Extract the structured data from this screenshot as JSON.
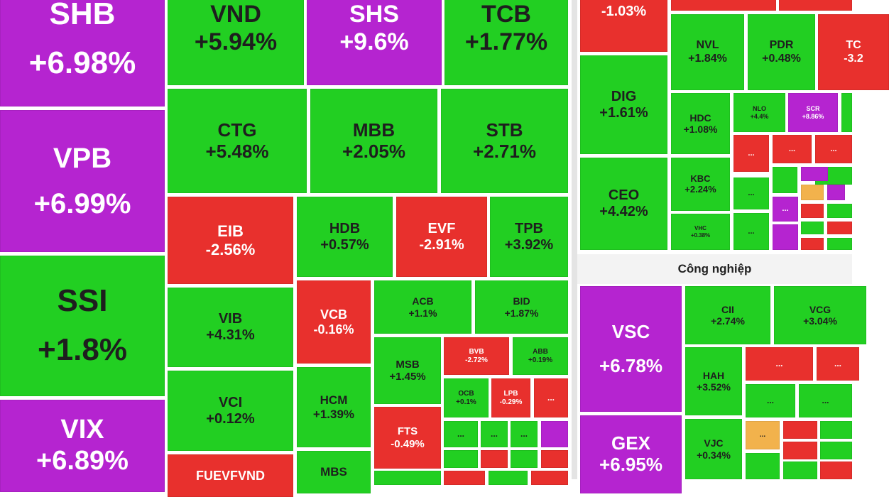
{
  "sections": {
    "industry_title": "Công nghiệp"
  },
  "tiles": [
    {
      "ticker": "SHB",
      "change": "+6.98%",
      "color": "#b524d0"
    },
    {
      "ticker": "VPB",
      "change": "+6.99%",
      "color": "#b524d0"
    },
    {
      "ticker": "SSI",
      "change": "+1.8%",
      "color": "#22cf22"
    },
    {
      "ticker": "VIX",
      "change": "+6.89%",
      "color": "#b524d0"
    },
    {
      "ticker": "VND",
      "change": "+5.94%",
      "color": "#22cf22"
    },
    {
      "ticker": "SHS",
      "change": "+9.6%",
      "color": "#b524d0"
    },
    {
      "ticker": "TCB",
      "change": "+1.77%",
      "color": "#22cf22"
    },
    {
      "ticker": "CTG",
      "change": "+5.48%",
      "color": "#22cf22"
    },
    {
      "ticker": "MBB",
      "change": "+2.05%",
      "color": "#22cf22"
    },
    {
      "ticker": "STB",
      "change": "+2.71%",
      "color": "#22cf22"
    },
    {
      "ticker": "EIB",
      "change": "-2.56%",
      "color": "#e8302d"
    },
    {
      "ticker": "HDB",
      "change": "+0.57%",
      "color": "#22cf22"
    },
    {
      "ticker": "EVF",
      "change": "-2.91%",
      "color": "#e8302d"
    },
    {
      "ticker": "TPB",
      "change": "+3.92%",
      "color": "#22cf22"
    },
    {
      "ticker": "VIB",
      "change": "+4.31%",
      "color": "#22cf22"
    },
    {
      "ticker": "VCI",
      "change": "+0.12%",
      "color": "#22cf22"
    },
    {
      "ticker": "FUEVFVND",
      "color": "#e8302d"
    },
    {
      "ticker": "VCB",
      "change": "-0.16%",
      "color": "#e8302d"
    },
    {
      "ticker": "HCM",
      "change": "+1.39%",
      "color": "#22cf22"
    },
    {
      "ticker": "MBS",
      "color": "#22cf22"
    },
    {
      "ticker": "ACB",
      "change": "+1.1%",
      "color": "#22cf22"
    },
    {
      "ticker": "BID",
      "change": "+1.87%",
      "color": "#22cf22"
    },
    {
      "ticker": "MSB",
      "change": "+1.45%",
      "color": "#22cf22"
    },
    {
      "ticker": "BVB",
      "change": "-2.72%",
      "color": "#e8302d"
    },
    {
      "ticker": "ABB",
      "change": "+0.19%",
      "color": "#22cf22"
    },
    {
      "ticker": "OCB",
      "change": "+0.1%",
      "color": "#22cf22"
    },
    {
      "ticker": "LPB",
      "change": "-0.29%",
      "color": "#e8302d"
    },
    {
      "ticker": "...",
      "color": "#e8302d"
    },
    {
      "ticker": "FTS",
      "change": "-0.49%",
      "color": "#e8302d"
    },
    {
      "ticker": "...",
      "color": "#22cf22"
    },
    {
      "ticker": "...",
      "color": "#22cf22"
    },
    {
      "ticker": "...",
      "color": "#22cf22"
    },
    {
      "change": "-1.03%",
      "color": "#e8302d"
    },
    {
      "ticker": "DIG",
      "change": "+1.61%",
      "color": "#22cf22"
    },
    {
      "ticker": "CEO",
      "change": "+4.42%",
      "color": "#22cf22"
    },
    {
      "ticker": "NVL",
      "change": "+1.84%",
      "color": "#22cf22"
    },
    {
      "ticker": "PDR",
      "change": "+0.48%",
      "color": "#22cf22"
    },
    {
      "ticker": "TC",
      "change": "-3.2",
      "color": "#e8302d"
    },
    {
      "ticker": "HDC",
      "change": "+1.08%",
      "color": "#22cf22"
    },
    {
      "ticker": "NLO",
      "change": "+4.4%",
      "color": "#22cf22"
    },
    {
      "ticker": "SCR",
      "change": "+8.86%",
      "color": "#b524d0"
    },
    {
      "ticker": "KBC",
      "change": "+2.24%",
      "color": "#22cf22"
    },
    {
      "ticker": "VHC",
      "change": "+0.38%",
      "color": "#22cf22"
    },
    {
      "ticker": "...",
      "color": "#e8302d"
    },
    {
      "ticker": "...",
      "color": "#e8302d"
    },
    {
      "ticker": "...",
      "color": "#e8302d"
    },
    {
      "ticker": "...",
      "color": "#22cf22"
    },
    {
      "ticker": "...",
      "color": "#22cf22"
    },
    {
      "ticker": "...",
      "color": "#b524d0"
    },
    {
      "ticker": "VSC",
      "change": "+6.78%",
      "color": "#b524d0"
    },
    {
      "ticker": "GEX",
      "change": "+6.95%",
      "color": "#b524d0"
    },
    {
      "ticker": "CII",
      "change": "+2.74%",
      "color": "#22cf22"
    },
    {
      "ticker": "VCG",
      "change": "+3.04%",
      "color": "#22cf22"
    },
    {
      "ticker": "HAH",
      "change": "+3.52%",
      "color": "#22cf22"
    },
    {
      "ticker": "VJC",
      "change": "+0.34%",
      "color": "#22cf22"
    },
    {
      "ticker": "...",
      "color": "#e8302d"
    },
    {
      "ticker": "...",
      "color": "#e8302d"
    },
    {
      "ticker": "...",
      "color": "#22cf22"
    },
    {
      "ticker": "...",
      "color": "#22cf22"
    },
    {
      "ticker": "...",
      "color": "#f2b24c"
    }
  ]
}
